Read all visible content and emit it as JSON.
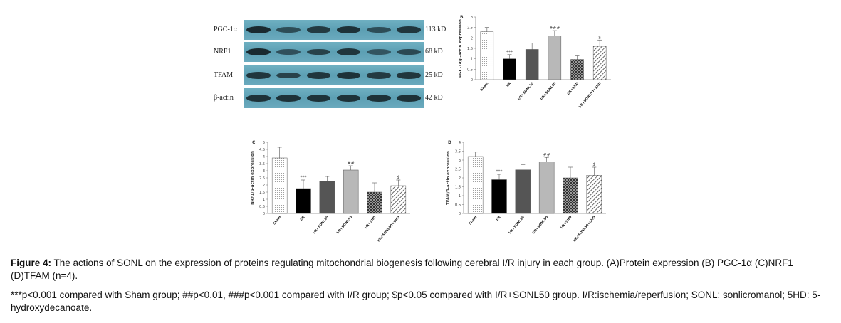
{
  "blot": {
    "rows": [
      {
        "name": "PGC-1α",
        "kd": "113 kD",
        "band_intensity": [
          1.0,
          0.55,
          0.8,
          0.9,
          0.55,
          0.85
        ]
      },
      {
        "name": "NRF1",
        "kd": "68 kD",
        "band_intensity": [
          1.0,
          0.5,
          0.7,
          0.85,
          0.45,
          0.6
        ]
      },
      {
        "name": "TFAM",
        "kd": "25 kD",
        "band_intensity": [
          0.85,
          0.7,
          0.85,
          0.9,
          0.8,
          0.85
        ]
      },
      {
        "name": "β-actin",
        "kd": "42 kD",
        "band_intensity": [
          0.9,
          0.9,
          0.9,
          0.9,
          0.9,
          0.9
        ]
      }
    ]
  },
  "chart_data": [
    {
      "panel": "B",
      "type": "bar",
      "ylabel": "PGC-1α/β-actin expression",
      "ylim": [
        0,
        3
      ],
      "yticks": [
        0,
        0.5,
        1,
        1.5,
        2,
        2.5,
        3
      ],
      "categories": [
        "Sham",
        "I/R",
        "I/R+SONL10",
        "I/R+SONL50",
        "I/R+5HD",
        "I/R+SONL50+5HD"
      ],
      "values": [
        2.3,
        1.0,
        1.45,
        2.1,
        0.97,
        1.6
      ],
      "errors": [
        0.2,
        0.2,
        0.3,
        0.25,
        0.17,
        0.3
      ],
      "annotations": [
        "",
        "***",
        "",
        "###",
        "",
        "$"
      ]
    },
    {
      "panel": "C",
      "type": "bar",
      "ylabel": "NRF1/β-actin expression",
      "ylim": [
        0,
        5
      ],
      "yticks": [
        0,
        0.5,
        1,
        1.5,
        2,
        2.5,
        3,
        3.5,
        4,
        4.5,
        5
      ],
      "categories": [
        "Sham",
        "I/R",
        "I/R+SONL10",
        "I/R+SONL50",
        "I/R+5HD",
        "I/R+SONL50+5HD"
      ],
      "values": [
        3.9,
        1.75,
        2.25,
        3.05,
        1.5,
        1.95
      ],
      "errors": [
        0.75,
        0.6,
        0.35,
        0.3,
        0.65,
        0.4
      ],
      "annotations": [
        "",
        "***",
        "",
        "##",
        "",
        "$"
      ]
    },
    {
      "panel": "D",
      "type": "bar",
      "ylabel": "TFAM/β-actin expression",
      "ylim": [
        0,
        4
      ],
      "yticks": [
        0,
        0.5,
        1,
        1.5,
        2,
        2.5,
        3,
        3.5,
        4
      ],
      "categories": [
        "Sham",
        "I/R",
        "I/R+SONL10",
        "I/R+SONL50",
        "I/R+5HD",
        "I/R+SONL50+5HD"
      ],
      "values": [
        3.2,
        1.9,
        2.45,
        2.9,
        2.0,
        2.15
      ],
      "errors": [
        0.25,
        0.3,
        0.3,
        0.25,
        0.6,
        0.45
      ],
      "annotations": [
        "",
        "***",
        "",
        "##",
        "",
        "$"
      ]
    }
  ],
  "caption": {
    "figure_label": "Figure 4:",
    "figure_text": "The actions of SONL on the expression of proteins regulating mitochondrial biogenesis following cerebral I/R injury in each group. (A)Protein expression (B) PGC-1α (C)NRF1 (D)TFAM (n=4).",
    "note": "***p<0.001 compared with Sham group; ##p<0.01, ###p<0.001 compared with I/R group; $p<0.05 compared with I/R+SONL50 group. I/R:ischemia/reperfusion; SONL: sonlicromanol; 5HD: 5-hydroxydecanoate."
  }
}
